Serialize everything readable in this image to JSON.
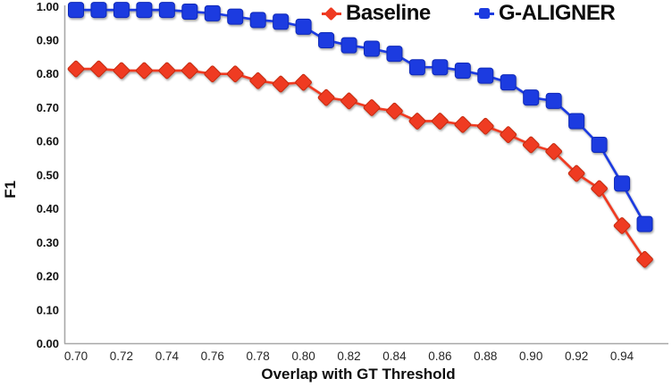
{
  "chart_data": {
    "type": "line",
    "title": "",
    "xlabel": "Overlap with GT Threshold",
    "ylabel": "F1",
    "grid": false,
    "legend_position": "top",
    "xlim": [
      0.7,
      0.955
    ],
    "ylim": [
      0.0,
      1.0
    ],
    "x_ticks": [
      "0.70",
      "0.72",
      "0.74",
      "0.76",
      "0.78",
      "0.80",
      "0.82",
      "0.84",
      "0.86",
      "0.88",
      "0.90",
      "0.92",
      "0.94"
    ],
    "y_ticks": [
      "0.00",
      "0.10",
      "0.20",
      "0.30",
      "0.40",
      "0.50",
      "0.60",
      "0.70",
      "0.80",
      "0.90",
      "1.00"
    ],
    "axis_color": "#a8a8a8",
    "x": [
      0.7,
      0.71,
      0.72,
      0.73,
      0.74,
      0.75,
      0.76,
      0.77,
      0.78,
      0.79,
      0.8,
      0.81,
      0.82,
      0.83,
      0.84,
      0.85,
      0.86,
      0.87,
      0.88,
      0.89,
      0.9,
      0.91,
      0.92,
      0.93,
      0.94,
      0.95
    ],
    "series": [
      {
        "name": "Baseline",
        "marker": "diamond",
        "color": "#EF3B22",
        "edge_color": "#C5290F",
        "values": [
          0.815,
          0.815,
          0.81,
          0.81,
          0.81,
          0.81,
          0.8,
          0.8,
          0.78,
          0.77,
          0.775,
          0.73,
          0.72,
          0.7,
          0.69,
          0.66,
          0.66,
          0.65,
          0.645,
          0.62,
          0.59,
          0.57,
          0.505,
          0.46,
          0.35,
          0.25
        ]
      },
      {
        "name": "G-ALIGNER",
        "marker": "square",
        "color": "#1C3BE0",
        "edge_color": "#1129B8",
        "values": [
          0.99,
          0.99,
          0.99,
          0.99,
          0.99,
          0.985,
          0.98,
          0.97,
          0.96,
          0.955,
          0.94,
          0.9,
          0.885,
          0.875,
          0.86,
          0.82,
          0.82,
          0.81,
          0.795,
          0.775,
          0.73,
          0.72,
          0.66,
          0.59,
          0.475,
          0.355
        ]
      }
    ]
  }
}
